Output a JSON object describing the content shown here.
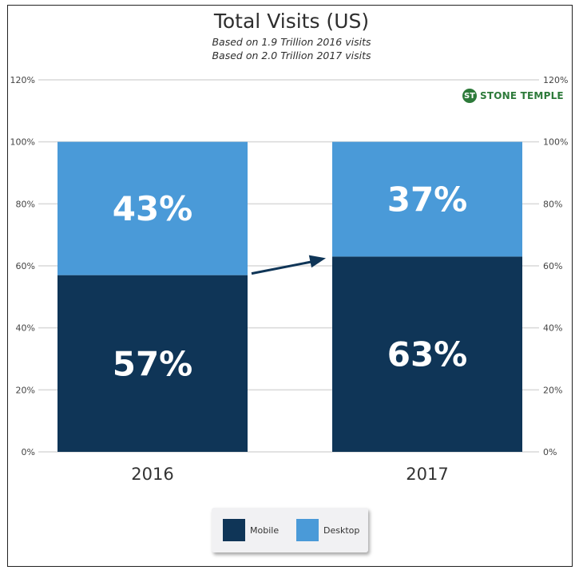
{
  "chart_data": {
    "type": "bar",
    "stacked": true,
    "title": "Total Visits (US)",
    "subtitle": [
      "Based on 1.9 Trillion 2016 visits",
      "Based on 2.0 Trillion 2017 visits"
    ],
    "categories": [
      "2016",
      "2017"
    ],
    "series": [
      {
        "name": "Mobile",
        "values": [
          57,
          63
        ],
        "labels": [
          "57%",
          "63%"
        ],
        "color": "#0f3557"
      },
      {
        "name": "Desktop",
        "values": [
          43,
          37
        ],
        "labels": [
          "43%",
          "37%"
        ],
        "color": "#4a9ad8"
      }
    ],
    "yticks": [
      "0%",
      "20%",
      "40%",
      "60%",
      "80%",
      "100%",
      "120%"
    ],
    "ylim": [
      0,
      120
    ],
    "grid": true,
    "dual_y_axis": true,
    "legend_position": "bottom",
    "annotation": "arrow-up-right-icon"
  },
  "logo": {
    "mark": "ST",
    "text": "STONE TEMPLE",
    "icon": "stone-temple-logo-icon",
    "color": "#2d7a3a"
  }
}
